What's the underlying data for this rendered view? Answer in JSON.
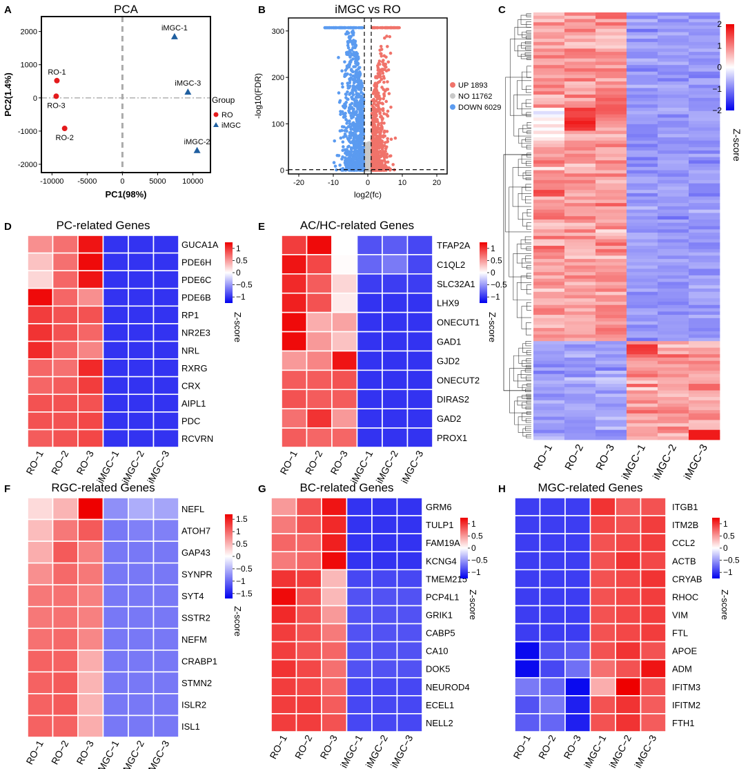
{
  "panel_letters": {
    "A": "A",
    "B": "B",
    "C": "C",
    "D": "D",
    "E": "E",
    "F": "F",
    "G": "G",
    "H": "H"
  },
  "colors": {
    "up": "#ee0000",
    "mid": "#ffffff",
    "down": "#0000ee",
    "ro_point": "#e41a1c",
    "imgc_point": "#1f5fa0",
    "volcano_up": "#f0736a",
    "volcano_no": "#c8c8c8",
    "volcano_down": "#5b9bf0"
  },
  "chart_data": [
    {
      "id": "A",
      "type": "scatter",
      "title": "PCA",
      "xlabel": "PC1(98%)",
      "ylabel": "PC2(1.4%)",
      "xlim": [
        -11500,
        12500
      ],
      "ylim": [
        -2250,
        2450
      ],
      "xticks": [
        -10000,
        -5000,
        0,
        5000,
        10000
      ],
      "xtick_labels": [
        "-10000",
        "-5000",
        "0",
        "5000",
        "10000"
      ],
      "yticks": [
        -2000,
        -1000,
        0,
        1000,
        2000
      ],
      "ytick_labels": [
        "-2000",
        "-1000",
        "0",
        "1000",
        "2000"
      ],
      "legend": {
        "title": "Group",
        "entries": [
          "RO",
          "iMGC"
        ],
        "placement": "right"
      },
      "points": [
        {
          "label": "RO-1",
          "group": "RO",
          "x": -9300,
          "y": 520
        },
        {
          "label": "RO-3",
          "group": "RO",
          "x": -9400,
          "y": 50
        },
        {
          "label": "RO-2",
          "group": "RO",
          "x": -8200,
          "y": -920
        },
        {
          "label": "iMGC-1",
          "group": "iMGC",
          "x": 7400,
          "y": 1850
        },
        {
          "label": "iMGC-3",
          "group": "iMGC",
          "x": 9300,
          "y": 180
        },
        {
          "label": "iMGC-2",
          "group": "iMGC",
          "x": 10600,
          "y": -1580
        }
      ]
    },
    {
      "id": "B",
      "type": "scatter",
      "title": "iMGC vs RO",
      "xlabel": "log2(fc)",
      "ylabel": "-log10(FDR)",
      "xlim": [
        -23,
        23
      ],
      "ylim": [
        -8,
        328
      ],
      "xticks": [
        -20,
        -10,
        0,
        10,
        20
      ],
      "xtick_labels": [
        "-20",
        "-10",
        "0",
        "10",
        "20"
      ],
      "yticks": [
        0,
        100,
        200,
        300
      ],
      "ytick_labels": [
        "0",
        "100",
        "200",
        "300"
      ],
      "thresholds": {
        "x": [
          -1,
          1
        ],
        "y": 1.3
      },
      "legend": {
        "entries": [
          "UP 1893",
          "NO 11762",
          "DOWN 6029"
        ],
        "placement": "right"
      },
      "counts": {
        "up": 1893,
        "no": 11762,
        "down": 6029
      }
    },
    {
      "id": "C",
      "type": "heatmap",
      "colorbar_label": "Z-score",
      "columns": [
        "RO−1",
        "RO−2",
        "RO−3",
        "iMGC−1",
        "iMGC−2",
        "iMGC−3"
      ],
      "colorbar_ticks": [
        2,
        1,
        0,
        -1,
        -2
      ],
      "colorbar_tick_labels": [
        "2",
        "1",
        "0",
        "−1",
        "−2"
      ],
      "vlim": [
        -2,
        2
      ],
      "clusters": [
        {
          "genes": 6029,
          "pattern": "RO high"
        },
        {
          "genes": 1893,
          "pattern": "iMGC high"
        }
      ]
    },
    {
      "id": "D",
      "type": "heatmap",
      "title": "PC-related Genes",
      "colorbar_label": "Z-score",
      "columns": [
        "RO−1",
        "RO−2",
        "RO−3",
        "iMGC−1",
        "iMGC−2",
        "iMGC−3"
      ],
      "colorbar_ticks": [
        1,
        0.5,
        0,
        -0.5,
        -1
      ],
      "colorbar_tick_labels": [
        "1",
        "0.5",
        "0",
        "−0.5",
        "−1"
      ],
      "vlim": [
        -1.25,
        1.25
      ],
      "rows": [
        "GUCA1A",
        "PDE6H",
        "PDE6C",
        "PDE6B",
        "RP1",
        "NR2E3",
        "NRL",
        "RXRG",
        "CRX",
        "AIPL1",
        "PDC",
        "RCVRN"
      ],
      "values": [
        [
          0.55,
          0.7,
          1.15,
          -1.0,
          -1.0,
          -1.0
        ],
        [
          0.3,
          0.7,
          1.2,
          -1.0,
          -1.0,
          -1.0
        ],
        [
          0.2,
          0.75,
          1.15,
          -1.0,
          -1.0,
          -1.0
        ],
        [
          1.2,
          0.75,
          0.55,
          -1.0,
          -1.0,
          -1.0
        ],
        [
          0.95,
          0.85,
          0.85,
          -1.0,
          -1.0,
          -1.0
        ],
        [
          1.0,
          0.85,
          0.75,
          -1.0,
          -1.0,
          -1.0
        ],
        [
          1.05,
          0.75,
          0.6,
          -1.0,
          -1.0,
          -1.0
        ],
        [
          0.75,
          0.7,
          1.05,
          -1.0,
          -1.0,
          -1.0
        ],
        [
          0.75,
          0.8,
          0.95,
          -1.0,
          -1.0,
          -1.0
        ],
        [
          0.85,
          0.85,
          0.85,
          -1.0,
          -1.0,
          -1.0
        ],
        [
          0.85,
          0.85,
          0.9,
          -1.0,
          -1.0,
          -1.0
        ],
        [
          0.8,
          0.85,
          0.9,
          -1.0,
          -1.0,
          -1.0
        ]
      ]
    },
    {
      "id": "E",
      "type": "heatmap",
      "title": "AC/HC-related Genes",
      "colorbar_label": "Z-score",
      "columns": [
        "RO−1",
        "RO−2",
        "RO−3",
        "iMGC−1",
        "iMGC−2",
        "iMGC−3"
      ],
      "colorbar_ticks": [
        1,
        0.5,
        0,
        -0.5,
        -1
      ],
      "colorbar_tick_labels": [
        "1",
        "0.5",
        "0",
        "−0.5",
        "−1"
      ],
      "vlim": [
        -1.25,
        1.25
      ],
      "rows": [
        "TFAP2A",
        "C1QL2",
        "SLC32A1",
        "LHX9",
        "ONECUT1",
        "GAD1",
        "GJD2",
        "ONECUT2",
        "DIRAS2",
        "GAD2",
        "PROX1"
      ],
      "values": [
        [
          0.95,
          1.2,
          0.0,
          -0.85,
          -0.8,
          -0.9
        ],
        [
          1.15,
          0.9,
          0.02,
          -0.75,
          -0.65,
          -0.9
        ],
        [
          1.05,
          0.8,
          0.2,
          -0.95,
          -0.95,
          -0.95
        ],
        [
          1.1,
          0.85,
          0.1,
          -1.0,
          -1.0,
          -1.0
        ],
        [
          1.2,
          0.4,
          0.45,
          -1.0,
          -1.0,
          -1.0
        ],
        [
          1.2,
          0.5,
          0.3,
          -1.0,
          -1.0,
          -1.0
        ],
        [
          0.5,
          0.6,
          1.15,
          -1.0,
          -1.0,
          -1.0
        ],
        [
          0.8,
          0.8,
          0.85,
          -1.0,
          -1.0,
          -1.0
        ],
        [
          0.85,
          0.8,
          0.8,
          -1.0,
          -1.0,
          -1.0
        ],
        [
          0.7,
          1.0,
          0.5,
          -1.0,
          -1.0,
          -1.0
        ],
        [
          0.8,
          0.75,
          0.75,
          -1.0,
          -1.0,
          -1.0
        ]
      ]
    },
    {
      "id": "F",
      "type": "heatmap",
      "title": "RGC-related Genes",
      "colorbar_label": "Z-score",
      "columns": [
        "RO−1",
        "RO−2",
        "RO−3",
        "iMGC−1",
        "iMGC−2",
        "iMGC−3"
      ],
      "colorbar_ticks": [
        1.5,
        1,
        0.5,
        0,
        -0.5,
        -1,
        -1.5
      ],
      "colorbar_tick_labels": [
        "1.5",
        "1",
        "0.5",
        "0",
        "−0.5",
        "−1",
        "−1.5"
      ],
      "vlim": [
        -1.7,
        1.7
      ],
      "rows": [
        "NEFL",
        "ATOH7",
        "GAP43",
        "SYNPR",
        "SYT4",
        "SSTR2",
        "NEFM",
        "CRABP1",
        "STMN2",
        "ISLR2",
        "ISL1"
      ],
      "values": [
        [
          0.25,
          0.5,
          1.7,
          -0.75,
          -0.55,
          -0.6
        ],
        [
          0.45,
          0.9,
          1.1,
          -0.9,
          -0.85,
          -0.85
        ],
        [
          0.55,
          1.1,
          0.85,
          -0.9,
          -0.9,
          -0.9
        ],
        [
          0.75,
          1.0,
          0.9,
          -0.9,
          -0.9,
          -0.9
        ],
        [
          0.9,
          0.95,
          0.85,
          -0.9,
          -0.9,
          -0.9
        ],
        [
          0.9,
          0.95,
          0.85,
          -0.9,
          -0.9,
          -0.9
        ],
        [
          0.95,
          1.0,
          0.8,
          -0.9,
          -0.9,
          -0.9
        ],
        [
          1.05,
          1.05,
          0.55,
          -0.9,
          -0.9,
          -0.9
        ],
        [
          1.05,
          1.1,
          0.5,
          -0.9,
          -0.9,
          -0.9
        ],
        [
          1.05,
          1.1,
          0.5,
          -0.9,
          -0.9,
          -0.9
        ],
        [
          1.05,
          1.05,
          0.55,
          -0.9,
          -0.9,
          -0.9
        ]
      ]
    },
    {
      "id": "G",
      "type": "heatmap",
      "title": "BC-related Genes",
      "colorbar_label": "Z-score",
      "columns": [
        "RO−1",
        "RO−2",
        "RO−3",
        "iMGC−1",
        "iMGC−2",
        "iMGC−3"
      ],
      "colorbar_ticks": [
        1,
        0.5,
        0,
        -0.5,
        -1
      ],
      "colorbar_tick_labels": [
        "1",
        "0.5",
        "0",
        "−0.5",
        "−1"
      ],
      "vlim": [
        -1.25,
        1.25
      ],
      "rows": [
        "GRM6",
        "TULP1",
        "FAM19A4",
        "KCNG4",
        "TMEM215",
        "PCP4L1",
        "GRIK1",
        "CABP5",
        "CA10",
        "DOK5",
        "NEUROD4",
        "ECEL1",
        "NELL2"
      ],
      "values": [
        [
          0.5,
          0.85,
          1.15,
          -1.0,
          -1.0,
          -1.0
        ],
        [
          0.65,
          0.85,
          1.05,
          -1.0,
          -1.0,
          -1.0
        ],
        [
          0.75,
          0.75,
          1.1,
          -1.0,
          -1.0,
          -1.0
        ],
        [
          0.65,
          0.75,
          1.2,
          -1.0,
          -1.0,
          -1.0
        ],
        [
          1.0,
          0.95,
          0.35,
          -0.9,
          -0.9,
          -0.9
        ],
        [
          1.2,
          0.85,
          0.35,
          -0.85,
          -0.85,
          -0.85
        ],
        [
          1.05,
          0.85,
          0.5,
          -0.85,
          -0.85,
          -0.85
        ],
        [
          0.95,
          0.85,
          0.65,
          -0.85,
          -0.85,
          -0.85
        ],
        [
          0.95,
          0.85,
          0.75,
          -0.85,
          -0.85,
          -0.85
        ],
        [
          1.0,
          0.9,
          0.7,
          -0.85,
          -0.85,
          -0.85
        ],
        [
          0.95,
          0.9,
          0.75,
          -0.9,
          -0.9,
          -0.9
        ],
        [
          0.95,
          0.95,
          0.8,
          -0.9,
          -0.9,
          -0.9
        ],
        [
          0.95,
          0.95,
          0.85,
          -0.9,
          -0.9,
          -0.9
        ]
      ]
    },
    {
      "id": "H",
      "type": "heatmap",
      "title": "MGC-related Genes",
      "colorbar_label": "Z-score",
      "columns": [
        "RO−1",
        "RO−2",
        "RO−3",
        "iMGC−1",
        "iMGC−2",
        "iMGC−3"
      ],
      "colorbar_ticks": [
        1,
        0.5,
        0,
        -0.5,
        -1
      ],
      "colorbar_tick_labels": [
        "1",
        "0.5",
        "0",
        "−0.5",
        "−1"
      ],
      "vlim": [
        -1.25,
        1.25
      ],
      "rows": [
        "ITGB1",
        "ITM2B",
        "CCL2",
        "ACTB",
        "CRYAB",
        "RHOC",
        "VIM",
        "FTL",
        "APOE",
        "ADM",
        "IFITM3",
        "IFITM2",
        "FTH1"
      ],
      "values": [
        [
          -0.95,
          -0.95,
          -0.95,
          1.0,
          0.8,
          0.85
        ],
        [
          -0.95,
          -0.95,
          -0.95,
          0.9,
          0.85,
          0.95
        ],
        [
          -0.95,
          -0.95,
          -0.95,
          0.85,
          0.9,
          0.95
        ],
        [
          -0.95,
          -0.95,
          -0.95,
          0.85,
          1.0,
          0.9
        ],
        [
          -0.95,
          -0.95,
          -0.95,
          0.85,
          0.9,
          1.0
        ],
        [
          -0.95,
          -0.95,
          -0.95,
          0.85,
          0.9,
          0.95
        ],
        [
          -0.95,
          -0.95,
          -0.95,
          0.85,
          0.9,
          0.95
        ],
        [
          -0.95,
          -0.95,
          -0.95,
          0.85,
          0.9,
          0.95
        ],
        [
          -1.2,
          -0.85,
          -0.8,
          0.85,
          1.0,
          0.85
        ],
        [
          -1.2,
          -0.9,
          -0.7,
          0.7,
          0.85,
          1.15
        ],
        [
          -0.65,
          -0.75,
          -1.2,
          0.4,
          1.25,
          0.85
        ],
        [
          -0.85,
          -0.65,
          -1.1,
          0.85,
          1.0,
          0.8
        ],
        [
          -0.8,
          -0.75,
          -1.1,
          0.85,
          1.0,
          0.8
        ]
      ]
    }
  ]
}
